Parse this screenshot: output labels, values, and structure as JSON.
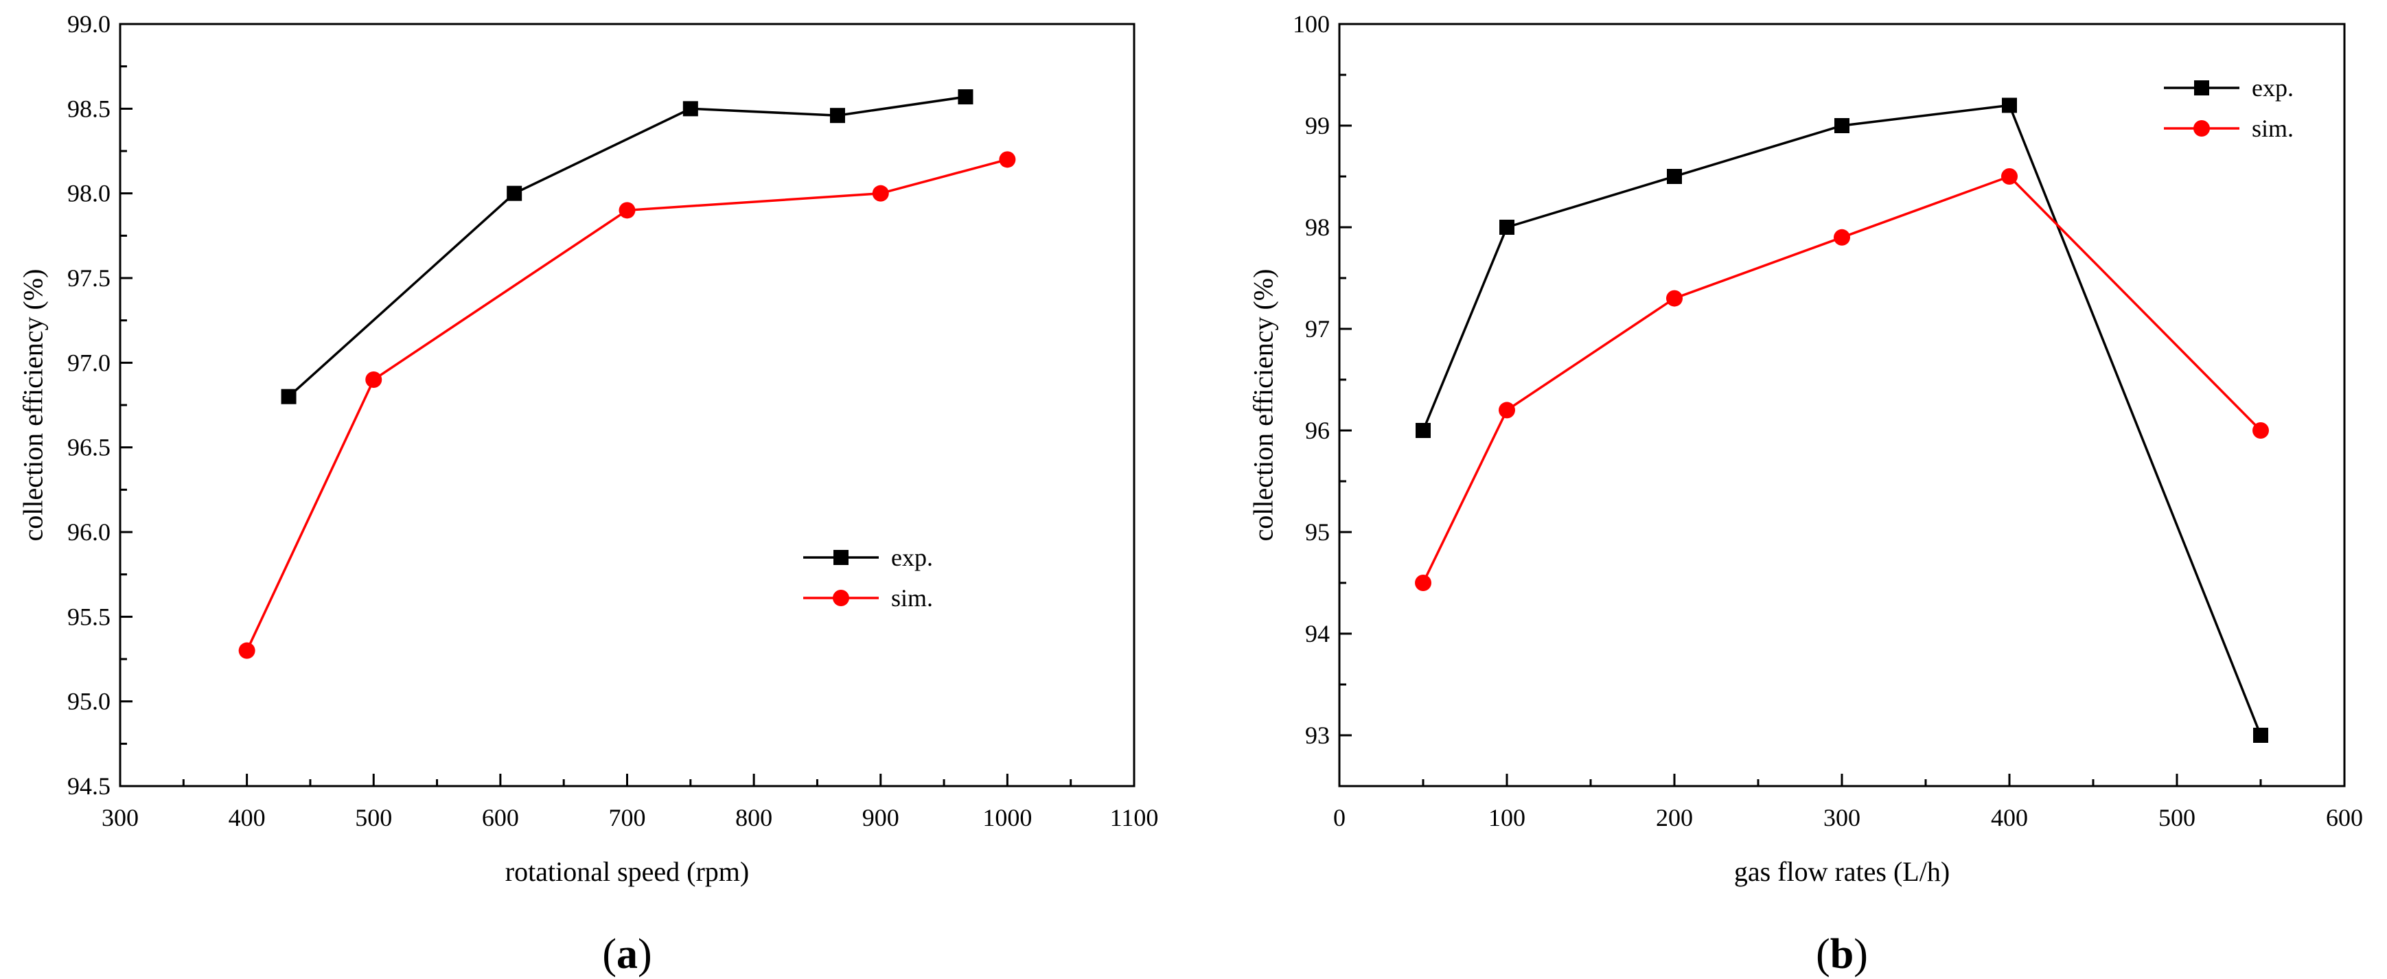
{
  "figure": {
    "panel_labels": [
      {
        "open": "(",
        "letter": "a",
        "close": ")"
      },
      {
        "open": "(",
        "letter": "b",
        "close": ")"
      }
    ]
  },
  "colors": {
    "exp": "#000000",
    "sim": "#ff0000",
    "axis": "#000000"
  },
  "chart_data": [
    {
      "type": "line",
      "panel": "a",
      "title": "",
      "xlabel": "rotational speed (rpm)",
      "ylabel": "collection efficiency (%)",
      "xlim": [
        300,
        1100
      ],
      "ylim": [
        94.5,
        99.0
      ],
      "xticks": [
        300,
        400,
        500,
        600,
        700,
        800,
        900,
        1000,
        1100
      ],
      "yticks": [
        94.5,
        95.0,
        95.5,
        96.0,
        96.5,
        97.0,
        97.5,
        98.0,
        98.5,
        99.0
      ],
      "xtick_labels": [
        "300",
        "400",
        "500",
        "600",
        "700",
        "800",
        "900",
        "1000",
        "1100"
      ],
      "ytick_labels": [
        "94.5",
        "95.0",
        "95.5",
        "96.0",
        "96.5",
        "97.0",
        "97.5",
        "98.0",
        "98.5",
        "99.0"
      ],
      "legend_position": "center-right",
      "series": [
        {
          "name": "exp.",
          "marker": "square",
          "x": [
            433,
            611,
            750,
            866,
            967
          ],
          "y": [
            96.8,
            98.0,
            98.5,
            98.46,
            98.57
          ]
        },
        {
          "name": "sim.",
          "marker": "circle",
          "x": [
            400,
            500,
            700,
            900,
            1000
          ],
          "y": [
            95.3,
            96.9,
            97.9,
            98.0,
            98.2
          ]
        }
      ]
    },
    {
      "type": "line",
      "panel": "b",
      "title": "",
      "xlabel": "gas flow rates (L/h)",
      "ylabel": "collection efficiency (%)",
      "xlim": [
        0,
        600
      ],
      "ylim": [
        92.5,
        100
      ],
      "xticks": [
        0,
        100,
        200,
        300,
        400,
        500,
        600
      ],
      "yticks": [
        93,
        94,
        95,
        96,
        97,
        98,
        99,
        100
      ],
      "xtick_labels": [
        "0",
        "100",
        "200",
        "300",
        "400",
        "500",
        "600"
      ],
      "ytick_labels": [
        "93",
        "94",
        "95",
        "96",
        "97",
        "98",
        "99",
        "100"
      ],
      "legend_position": "top-right",
      "series": [
        {
          "name": "exp.",
          "marker": "square",
          "x": [
            50,
            100,
            200,
            300,
            400,
            550
          ],
          "y": [
            96.0,
            98.0,
            98.5,
            99.0,
            99.2,
            93.0
          ]
        },
        {
          "name": "sim.",
          "marker": "circle",
          "x": [
            50,
            100,
            200,
            300,
            400,
            550
          ],
          "y": [
            94.5,
            96.2,
            97.3,
            97.9,
            98.5,
            96.0
          ]
        }
      ]
    }
  ]
}
